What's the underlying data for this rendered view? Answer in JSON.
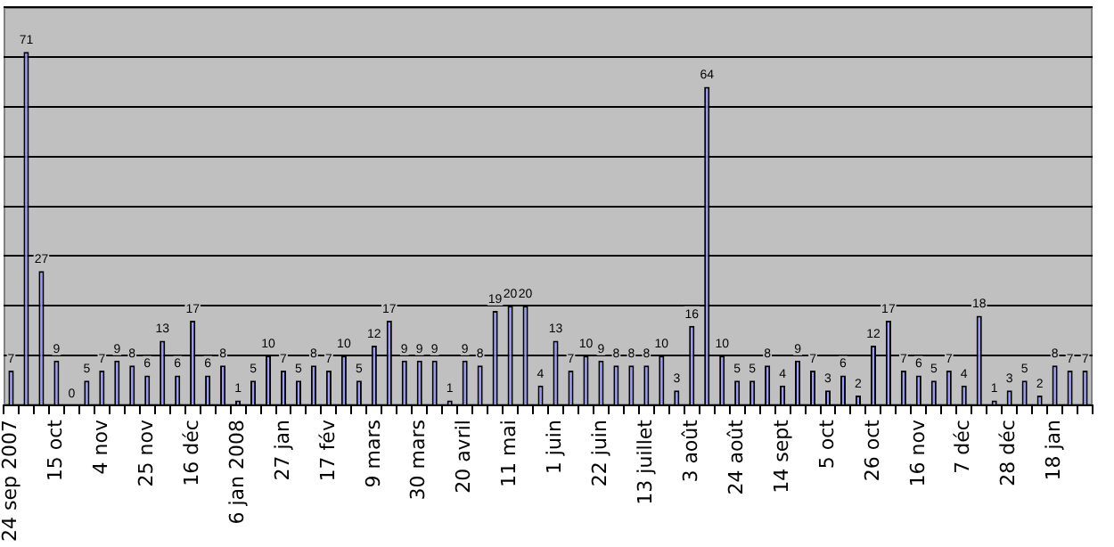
{
  "chart_data": {
    "type": "bar",
    "categories": [
      "24 sep 2007",
      null,
      null,
      "15 oct",
      null,
      null,
      "4 nov",
      null,
      null,
      "25 nov",
      null,
      null,
      "16 déc",
      null,
      null,
      "6 jan 2008",
      null,
      null,
      "27 jan",
      null,
      null,
      "17 fév",
      null,
      null,
      "9 mars",
      null,
      null,
      "30 mars",
      null,
      null,
      "20 avril",
      null,
      null,
      "11 mai",
      null,
      null,
      "1 juin",
      null,
      null,
      "22 juin",
      null,
      null,
      "13 juillet",
      null,
      null,
      "3 août",
      null,
      null,
      "24 août",
      null,
      null,
      "14 sept",
      null,
      null,
      "5 oct",
      null,
      null,
      "26 oct",
      null,
      null,
      "16 nov",
      null,
      null,
      "7 déc",
      null,
      null,
      "28 déc",
      null,
      null,
      "18 jan",
      null,
      null
    ],
    "values": [
      7,
      71,
      27,
      9,
      0,
      5,
      7,
      9,
      8,
      6,
      13,
      6,
      17,
      6,
      8,
      1,
      5,
      10,
      7,
      5,
      8,
      7,
      10,
      5,
      12,
      17,
      9,
      9,
      9,
      1,
      9,
      8,
      19,
      20,
      20,
      4,
      13,
      7,
      10,
      9,
      8,
      8,
      8,
      10,
      3,
      16,
      64,
      10,
      5,
      5,
      8,
      4,
      9,
      7,
      3,
      6,
      2,
      12,
      17,
      7,
      6,
      5,
      7,
      4,
      18,
      1,
      3,
      5,
      2,
      8,
      7,
      7
    ],
    "color": "#9999ff",
    "ylim": [
      0,
      80
    ],
    "yticks": [
      {
        "value": 0,
        "label": null
      },
      {
        "value": 10,
        "label": null
      },
      {
        "value": 20,
        "label": null
      },
      {
        "value": 30,
        "label": null
      },
      {
        "value": 40,
        "label": null
      },
      {
        "value": 50,
        "label": null
      },
      {
        "value": 60,
        "label": null
      },
      {
        "value": 70,
        "label": null
      },
      {
        "value": 80,
        "label": null
      }
    ],
    "tick_labels": "x",
    "grid": "y",
    "data_labels": true,
    "legend": false
  }
}
